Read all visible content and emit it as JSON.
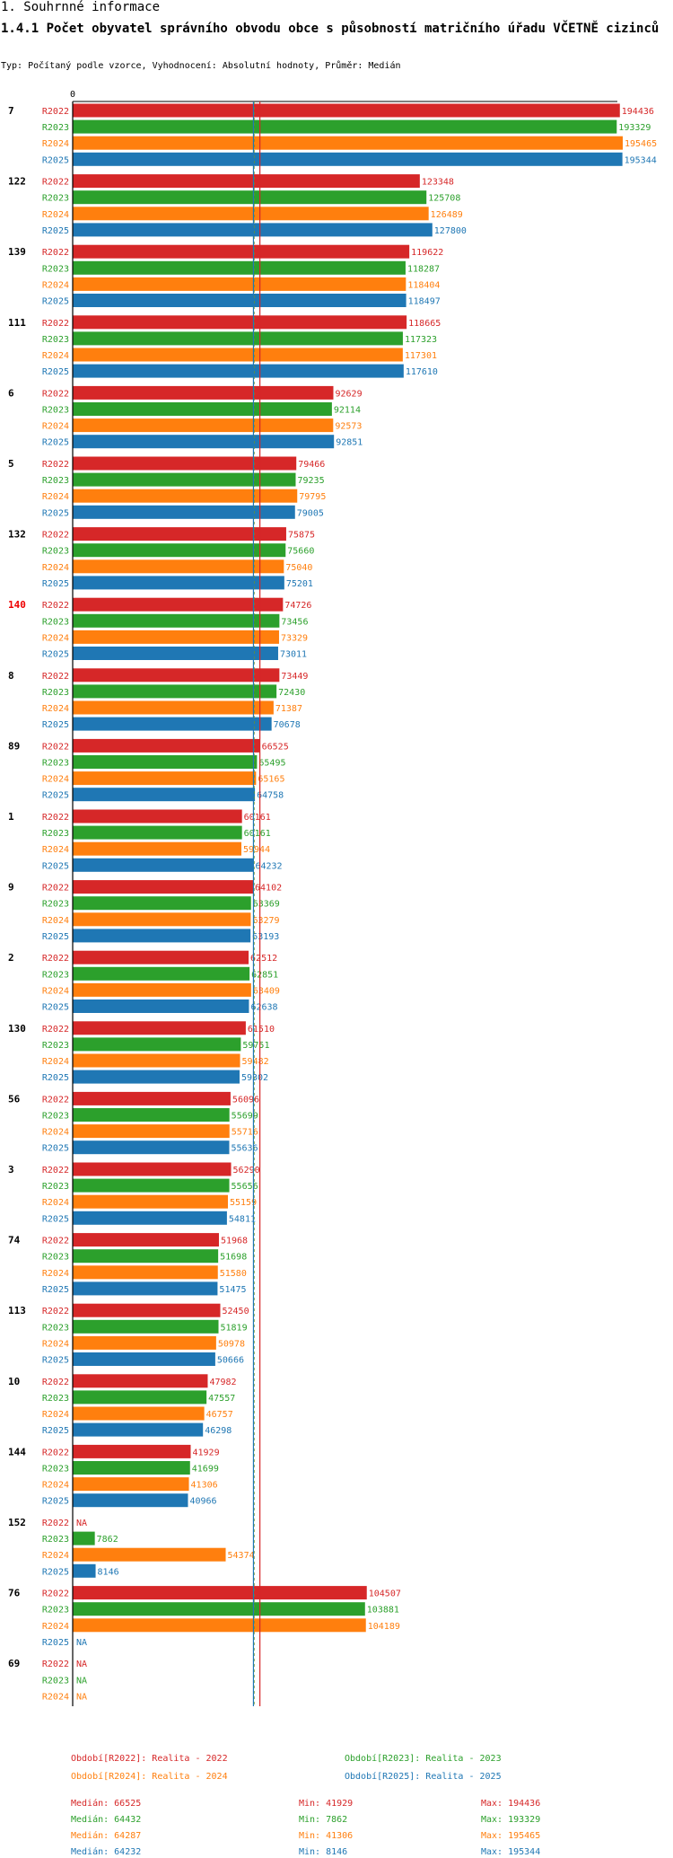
{
  "header": {
    "section": "1. Souhrnné informace",
    "title": "1.4.1 Počet obyvatel správního obvodu obce s působností matričního úřadu VČETNĚ cizinců",
    "subtitle": "Typ: Počítaný podle vzorce, Vyhodnocení: Absolutní hodnoty, Průměr: Medián"
  },
  "colors": {
    "R2022": "#d62728",
    "R2023": "#2ca02c",
    "R2024": "#ff7f0e",
    "R2025": "#1f77b4",
    "highlight": "#ee0000"
  },
  "chart_data": {
    "type": "bar",
    "orientation": "horizontal",
    "axis_zero_label": "0",
    "xlim": [
      0,
      195465
    ],
    "series_names": [
      "R2022",
      "R2023",
      "R2024",
      "R2025"
    ],
    "na_label": "NA",
    "groups": [
      {
        "label": "7",
        "highlight": false,
        "values": [
          194436,
          193329,
          195465,
          195344
        ]
      },
      {
        "label": "122",
        "highlight": false,
        "values": [
          123348,
          125708,
          126489,
          127800
        ]
      },
      {
        "label": "139",
        "highlight": false,
        "values": [
          119622,
          118287,
          118404,
          118497
        ]
      },
      {
        "label": "111",
        "highlight": false,
        "values": [
          118665,
          117323,
          117301,
          117610
        ]
      },
      {
        "label": "6",
        "highlight": false,
        "values": [
          92629,
          92114,
          92573,
          92851
        ]
      },
      {
        "label": "5",
        "highlight": false,
        "values": [
          79466,
          79235,
          79795,
          79005
        ]
      },
      {
        "label": "132",
        "highlight": false,
        "values": [
          75875,
          75660,
          75040,
          75201
        ]
      },
      {
        "label": "140",
        "highlight": true,
        "values": [
          74726,
          73456,
          73329,
          73011
        ]
      },
      {
        "label": "8",
        "highlight": false,
        "values": [
          73449,
          72430,
          71387,
          70678
        ]
      },
      {
        "label": "89",
        "highlight": false,
        "values": [
          66525,
          65495,
          65165,
          64758
        ]
      },
      {
        "label": "1",
        "highlight": false,
        "values": [
          60161,
          60161,
          59944,
          64232
        ]
      },
      {
        "label": "9",
        "highlight": false,
        "values": [
          64102,
          63369,
          63279,
          63193
        ]
      },
      {
        "label": "2",
        "highlight": false,
        "values": [
          62512,
          62851,
          63409,
          62638
        ]
      },
      {
        "label": "130",
        "highlight": false,
        "values": [
          61510,
          59751,
          59482,
          59302
        ]
      },
      {
        "label": "56",
        "highlight": false,
        "values": [
          56096,
          55699,
          55716,
          55636
        ]
      },
      {
        "label": "3",
        "highlight": false,
        "values": [
          56290,
          55656,
          55159,
          54811
        ]
      },
      {
        "label": "74",
        "highlight": false,
        "values": [
          51968,
          51698,
          51580,
          51475
        ]
      },
      {
        "label": "113",
        "highlight": false,
        "values": [
          52450,
          51819,
          50978,
          50666
        ]
      },
      {
        "label": "10",
        "highlight": false,
        "values": [
          47982,
          47557,
          46757,
          46298
        ]
      },
      {
        "label": "144",
        "highlight": false,
        "values": [
          41929,
          41699,
          41306,
          40966
        ]
      },
      {
        "label": "152",
        "highlight": false,
        "values": [
          null,
          7862,
          54374,
          8146
        ]
      },
      {
        "label": "76",
        "highlight": false,
        "values": [
          104507,
          103881,
          104189,
          null
        ]
      },
      {
        "label": "69",
        "highlight": false,
        "values": [
          null,
          null,
          null,
          null
        ]
      }
    ],
    "medians": [
      66525,
      64432,
      64287,
      64232
    ]
  },
  "legend": {
    "items": [
      {
        "key": "R2022",
        "text": "Období[R2022]: Realita - 2022"
      },
      {
        "key": "R2023",
        "text": "Období[R2023]: Realita - 2023"
      },
      {
        "key": "R2024",
        "text": "Období[R2024]: Realita - 2024"
      },
      {
        "key": "R2025",
        "text": "Období[R2025]: Realita - 2025"
      }
    ],
    "stats": [
      {
        "key": "R2022",
        "median": "Medián: 66525",
        "min": "Min: 41929",
        "max": "Max: 194436"
      },
      {
        "key": "R2023",
        "median": "Medián: 64432",
        "min": "Min: 7862",
        "max": "Max: 193329"
      },
      {
        "key": "R2024",
        "median": "Medián: 64287",
        "min": "Min: 41306",
        "max": "Max: 195465"
      },
      {
        "key": "R2025",
        "median": "Medián: 64232",
        "min": "Min: 8146",
        "max": "Max: 195344"
      }
    ]
  }
}
